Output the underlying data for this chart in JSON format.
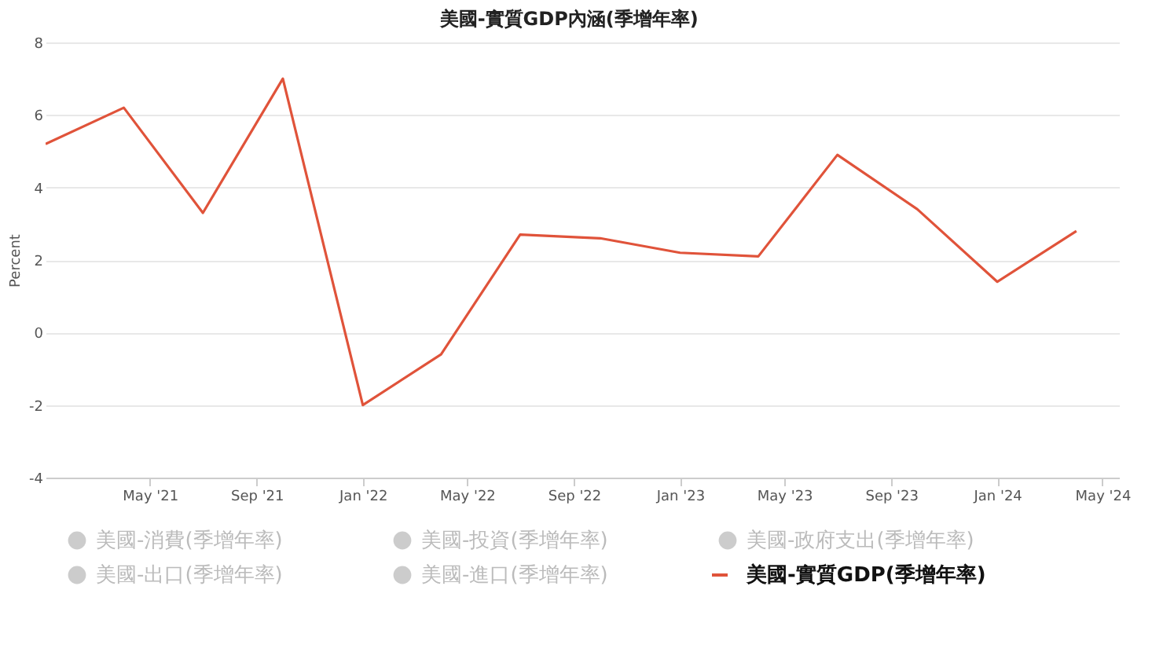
{
  "chart_data": {
    "type": "line",
    "title": "美國-實質GDP內涵(季增年率)",
    "ylabel": "Percent",
    "x": [
      "2021-01-01",
      "2021-04-01",
      "2021-07-01",
      "2021-10-01",
      "2022-01-01",
      "2022-04-01",
      "2022-07-01",
      "2022-10-01",
      "2023-01-01",
      "2023-04-01",
      "2023-07-01",
      "2023-10-01",
      "2024-01-01",
      "2024-04-01"
    ],
    "series": [
      {
        "name": "美國-消費(季增年率)",
        "color": "#cccccc",
        "values": [
          null,
          null,
          null,
          null,
          null,
          null,
          null,
          null,
          null,
          null,
          null,
          null,
          null,
          null
        ]
      },
      {
        "name": "美國-投資(季增年率)",
        "color": "#cccccc",
        "values": [
          null,
          null,
          null,
          null,
          null,
          null,
          null,
          null,
          null,
          null,
          null,
          null,
          null,
          null
        ]
      },
      {
        "name": "美國-政府支出(季增年率)",
        "color": "#cccccc",
        "values": [
          null,
          null,
          null,
          null,
          null,
          null,
          null,
          null,
          null,
          null,
          null,
          null,
          null,
          null
        ]
      },
      {
        "name": "美國-出口(季增年率)",
        "color": "#cccccc",
        "values": [
          null,
          null,
          null,
          null,
          null,
          null,
          null,
          null,
          null,
          null,
          null,
          null,
          null,
          null
        ]
      },
      {
        "name": "美國-進口(季增年率)",
        "color": "#cccccc",
        "values": [
          null,
          null,
          null,
          null,
          null,
          null,
          null,
          null,
          null,
          null,
          null,
          null,
          null,
          null
        ]
      },
      {
        "name": "美國-實質GDP(季增年率)",
        "color": "#e0533a",
        "values": [
          5.2,
          6.2,
          3.3,
          7.0,
          -2.0,
          -0.6,
          2.7,
          2.6,
          2.2,
          2.1,
          4.9,
          3.4,
          1.4,
          2.8
        ]
      }
    ],
    "xlim": [
      "2021-01-01",
      "2024-05-20"
    ],
    "xticks": [
      {
        "value": "2021-05-01",
        "label": "May '21"
      },
      {
        "value": "2021-09-01",
        "label": "Sep '21"
      },
      {
        "value": "2022-01-01",
        "label": "Jan '22"
      },
      {
        "value": "2022-05-01",
        "label": "May '22"
      },
      {
        "value": "2022-09-01",
        "label": "Sep '22"
      },
      {
        "value": "2023-01-01",
        "label": "Jan '23"
      },
      {
        "value": "2023-05-01",
        "label": "May '23"
      },
      {
        "value": "2023-09-01",
        "label": "Sep '23"
      },
      {
        "value": "2024-01-01",
        "label": "Jan '24"
      },
      {
        "value": "2024-05-01",
        "label": "May '24"
      }
    ],
    "ylim": [
      -4,
      8
    ],
    "yticks": [
      -4,
      -2,
      0,
      2,
      4,
      6,
      8
    ],
    "grid": "y",
    "legend": "bottom",
    "marker": "none",
    "line_style": "solid"
  }
}
